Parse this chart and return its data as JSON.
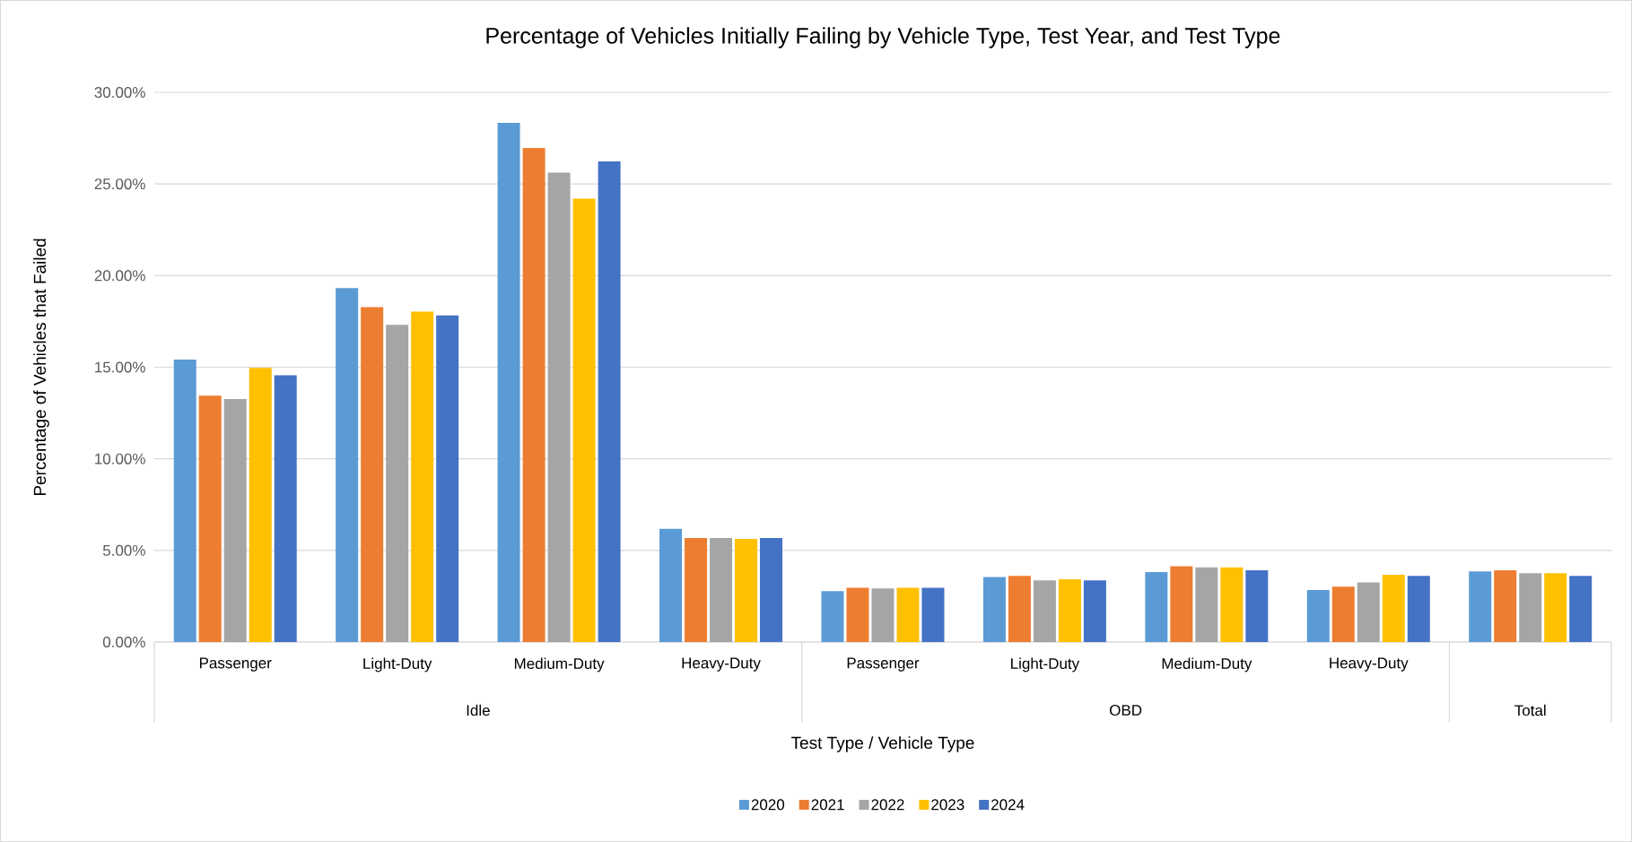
{
  "chart_data": {
    "type": "bar",
    "title": "Percentage of Vehicles Initially Failing by Vehicle Type, Test Year, and Test Type",
    "xlabel": "Test Type / Vehicle Type",
    "ylabel": "Percentage of Vehicles that Failed",
    "categories": [
      "Passenger",
      "Light-Duty",
      "Medium-Duty",
      "Heavy-Duty",
      "Passenger",
      "Light-Duty",
      "Medium-Duty",
      "Heavy-Duty",
      null
    ],
    "annotations": [
      "Idle",
      "OBD",
      "Total"
    ],
    "series": [
      {
        "name": "2020",
        "color": "#5b9bd5",
        "values": [
          15.41,
          19.32,
          28.34,
          6.18,
          2.78,
          3.55,
          3.82,
          2.84,
          3.85
        ]
      },
      {
        "name": "2021",
        "color": "#ed7d31",
        "values": [
          13.45,
          18.28,
          26.96,
          5.68,
          2.96,
          3.61,
          4.14,
          3.02,
          3.91
        ]
      },
      {
        "name": "2022",
        "color": "#a5a5a5",
        "values": [
          13.26,
          17.31,
          25.62,
          5.68,
          2.93,
          3.37,
          4.08,
          3.25,
          3.76
        ]
      },
      {
        "name": "2023",
        "color": "#ffc000",
        "values": [
          14.96,
          18.04,
          24.2,
          5.63,
          2.96,
          3.43,
          4.08,
          3.67,
          3.76
        ]
      },
      {
        "name": "2024",
        "color": "#4472c4",
        "values": [
          14.56,
          17.83,
          26.23,
          5.68,
          2.96,
          3.37,
          3.91,
          3.61,
          3.61
        ]
      }
    ],
    "ylim": [
      0,
      30
    ],
    "yticks": [
      {
        "value": 0,
        "label": "0.00%"
      },
      {
        "value": 5,
        "label": "5.00%"
      },
      {
        "value": 10,
        "label": "10.00%"
      },
      {
        "value": 15,
        "label": "15.00%"
      },
      {
        "value": 20,
        "label": "20.00%"
      },
      {
        "value": 25,
        "label": "25.00%"
      },
      {
        "value": 30,
        "label": "30.00%"
      }
    ],
    "grid": "y",
    "legend": "bottom"
  }
}
